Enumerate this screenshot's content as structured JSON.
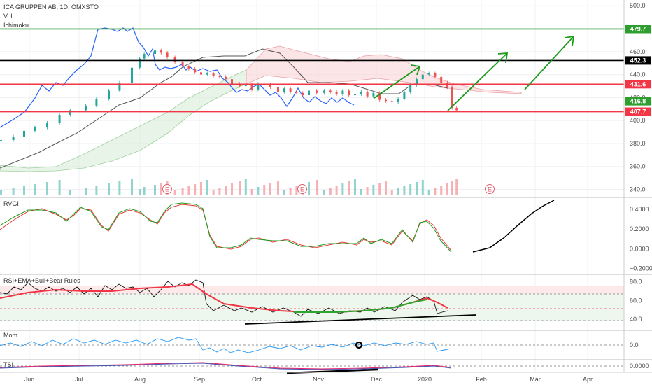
{
  "chart_data": {
    "type": "candlestick",
    "title": "ICA GRUPPEN AB, 1D, OMXSTO",
    "indicators_main": [
      "Vol",
      "Ichimoku"
    ],
    "x_months": [
      "Jun",
      "Jul",
      "Aug",
      "Sep",
      "Oct",
      "Nov",
      "Dec",
      "2020",
      "Feb",
      "Mar",
      "Apr"
    ],
    "price_axis": {
      "ticks": [
        340,
        360,
        380,
        400,
        420,
        440,
        460,
        480,
        500
      ],
      "tick_labels": [
        "340.0",
        "360.0",
        "380.0",
        "400.0",
        "420.0",
        "440.0",
        "460.0",
        "480.0",
        "500.0"
      ],
      "ylim": [
        333,
        505
      ]
    },
    "price_levels": [
      {
        "value": 479.7,
        "label": "479.7",
        "color": "#2e9e2e"
      },
      {
        "value": 452.3,
        "label": "452.3",
        "color": "#000000"
      },
      {
        "value": 431.6,
        "label": "431.6",
        "color": "#f23645"
      },
      {
        "value": 416.8,
        "label": "416.8",
        "color": "#2e9e2e"
      },
      {
        "value": 407.7,
        "label": "407.7",
        "color": "#f23645"
      }
    ],
    "earnings_markers": [
      "E",
      "E",
      "E"
    ],
    "close_path": [
      [
        0,
        383
      ],
      [
        8,
        386
      ],
      [
        15,
        391
      ],
      [
        22,
        394
      ],
      [
        30,
        398
      ],
      [
        38,
        405
      ],
      [
        45,
        409
      ],
      [
        55,
        413
      ],
      [
        62,
        419
      ],
      [
        70,
        426
      ],
      [
        77,
        433
      ],
      [
        85,
        446
      ],
      [
        90,
        454
      ],
      [
        93,
        458
      ],
      [
        100,
        461
      ],
      [
        104,
        459
      ],
      [
        108,
        455
      ],
      [
        113,
        451
      ],
      [
        118,
        447
      ],
      [
        122,
        445
      ],
      [
        126,
        442
      ],
      [
        130,
        440
      ],
      [
        134,
        441
      ],
      [
        138,
        439
      ],
      [
        142,
        438
      ],
      [
        146,
        436
      ],
      [
        150,
        432
      ],
      [
        155,
        430
      ],
      [
        159,
        431
      ],
      [
        163,
        427
      ],
      [
        167,
        432
      ],
      [
        171,
        431
      ],
      [
        175,
        429
      ],
      [
        180,
        425
      ],
      [
        184,
        428
      ],
      [
        188,
        425
      ],
      [
        192,
        424
      ],
      [
        196,
        422
      ],
      [
        200,
        426
      ],
      [
        205,
        424
      ],
      [
        210,
        426
      ],
      [
        214,
        425
      ],
      [
        218,
        423
      ],
      [
        222,
        426
      ],
      [
        226,
        422
      ],
      [
        230,
        423
      ],
      [
        234,
        425
      ],
      [
        238,
        421
      ],
      [
        242,
        424
      ],
      [
        246,
        418
      ],
      [
        250,
        417
      ],
      [
        254,
        416
      ],
      [
        258,
        419
      ],
      [
        262,
        425
      ],
      [
        266,
        431
      ],
      [
        270,
        436
      ],
      [
        274,
        440
      ],
      [
        278,
        441
      ],
      [
        282,
        438
      ],
      [
        286,
        433
      ],
      [
        290,
        429
      ],
      [
        293,
        411
      ],
      [
        296,
        409
      ]
    ],
    "rvgi": {
      "ticks": [
        -0.2,
        0.0,
        0.2,
        0.4
      ],
      "tick_labels": [
        "−0.2000",
        "0.0000",
        "0.2000",
        "0.4000"
      ],
      "ylim": [
        -0.26,
        0.52
      ]
    },
    "rsi": {
      "label": "RSI+EMA+Bull+Bear Rules",
      "ticks": [
        40,
        60,
        80
      ],
      "tick_labels": [
        "40.0",
        "60.0",
        "80.0"
      ],
      "ylim": [
        28,
        88
      ],
      "bands": [
        70,
        30
      ]
    },
    "mom": {
      "label": "Mom",
      "ticks": [
        0
      ],
      "tick_labels": [
        "0.0"
      ]
    },
    "tsi": {
      "label": "TSI",
      "ticks": [
        0
      ],
      "tick_labels": [
        "0.0000"
      ]
    },
    "sub_labels": {
      "rvgi": "RVGI"
    }
  }
}
